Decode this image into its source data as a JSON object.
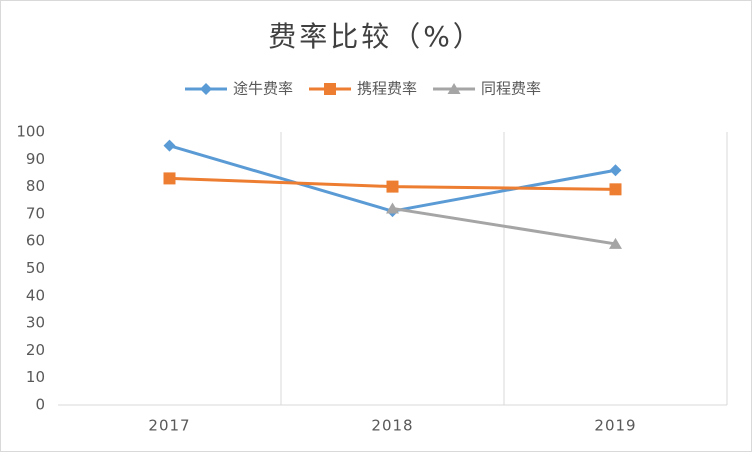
{
  "chart_data": {
    "type": "line",
    "title": "费率比较（%）",
    "categories": [
      "2017",
      "2018",
      "2019"
    ],
    "series": [
      {
        "name": "途牛费率",
        "color": "#5b9bd5",
        "marker": "diamond",
        "values": [
          95,
          71,
          86
        ]
      },
      {
        "name": "携程费率",
        "color": "#ed7d31",
        "marker": "square",
        "values": [
          83,
          80,
          79
        ]
      },
      {
        "name": "同程费率",
        "color": "#a5a5a5",
        "marker": "triangle",
        "values": [
          null,
          72,
          59
        ]
      }
    ],
    "ylim": [
      0,
      100
    ],
    "yticks": [
      0,
      10,
      20,
      30,
      40,
      50,
      60,
      70,
      80,
      90,
      100
    ],
    "legend": "top"
  }
}
